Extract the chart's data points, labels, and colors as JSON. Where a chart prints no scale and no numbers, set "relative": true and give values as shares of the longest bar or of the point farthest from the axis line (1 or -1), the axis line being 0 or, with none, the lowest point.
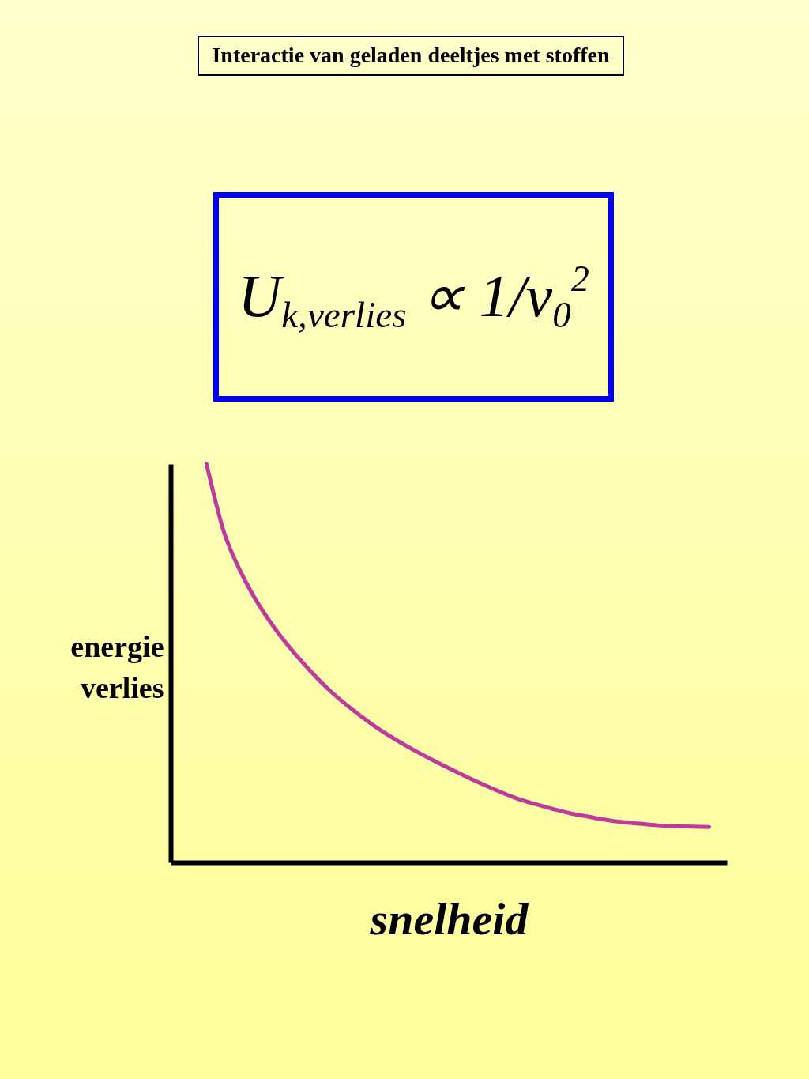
{
  "chart_data": {
    "type": "line",
    "title": "Interactie van geladen deeltjes met stoffen",
    "annotations": [
      "U$_{k,verlies}$ ∝ 1/v$_{0}$$^{2}$"
    ],
    "xlabel": "snelheid",
    "ylabel": "energie verlies",
    "relative": true,
    "categories": [
      null,
      null,
      null,
      null,
      null,
      null,
      null,
      null,
      null,
      null,
      null,
      null,
      null,
      null,
      null,
      null,
      null,
      null,
      null,
      null,
      null,
      null,
      null,
      null,
      null,
      null,
      null,
      null,
      null,
      null
    ],
    "values": [
      1,
      0.83,
      0.727,
      0.648,
      0.584,
      0.529,
      0.48,
      0.436,
      0.398,
      0.364,
      0.333,
      0.306,
      0.281,
      0.258,
      0.236,
      0.215,
      0.195,
      0.176,
      0.159,
      0.146,
      0.134,
      0.123,
      0.115,
      0.107,
      0.101,
      0.097,
      0.093,
      0.091,
      0.09,
      0.089
    ],
    "color": "#c0399f",
    "line_style": "solid"
  }
}
